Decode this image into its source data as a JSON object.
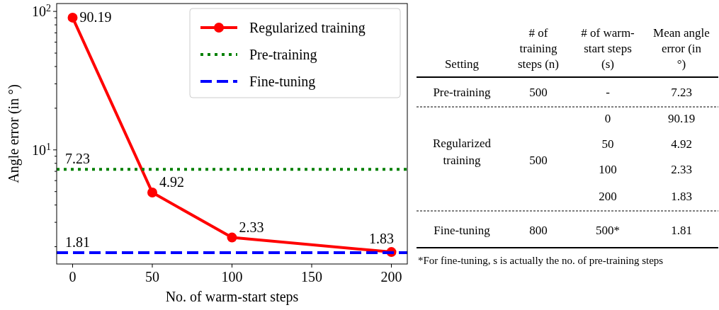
{
  "chart_data": [
    {
      "type": "line",
      "xlabel": "No. of warm-start steps",
      "ylabel": "Angle error (in °)",
      "log": "y",
      "xlim": [
        -10,
        210
      ],
      "ylim": [
        1.5,
        114
      ],
      "xticks": [
        0,
        50,
        100,
        150,
        200
      ],
      "yticks": [
        {
          "value": 2,
          "label": null
        },
        {
          "value": 3,
          "label": null
        },
        {
          "value": 4,
          "label": null
        },
        {
          "value": 5,
          "label": null
        },
        {
          "value": 6,
          "label": null
        },
        {
          "value": 7,
          "label": null
        },
        {
          "value": 8,
          "label": null
        },
        {
          "value": 9,
          "label": null
        },
        {
          "value": 10,
          "label": "10$^{1}$"
        },
        {
          "value": 20,
          "label": null
        },
        {
          "value": 30,
          "label": null
        },
        {
          "value": 40,
          "label": null
        },
        {
          "value": 50,
          "label": null
        },
        {
          "value": 60,
          "label": null
        },
        {
          "value": 70,
          "label": null
        },
        {
          "value": 80,
          "label": null
        },
        {
          "value": 90,
          "label": null
        },
        {
          "value": 100,
          "label": "10$^{2}$"
        }
      ],
      "legend": "top right",
      "grid": false,
      "series": [
        {
          "name": "Regularized training",
          "color": "#ff0000",
          "x": [
            0,
            50,
            100,
            200
          ],
          "values": [
            90.19,
            4.92,
            2.33,
            1.83
          ],
          "marker": "circle",
          "line_style": "solid",
          "value_labels": [
            "90.19",
            "4.92",
            "2.33",
            "1.83"
          ]
        },
        {
          "name": "Pre-training",
          "color": "#008000",
          "x": [
            -10,
            210
          ],
          "values": [
            7.23,
            7.23
          ],
          "marker": "none",
          "line_style": "dotted",
          "value_labels": [
            "7.23",
            null
          ]
        },
        {
          "name": "Fine-tuning",
          "color": "#0000ff",
          "x": [
            -10,
            210
          ],
          "values": [
            1.81,
            1.81
          ],
          "marker": "none",
          "line_style": "dashed",
          "value_labels": [
            "1.81",
            null
          ]
        }
      ]
    },
    {
      "type": "other",
      "annotations": [
        "Setting",
        "# of training steps (n)",
        "# of warm-start steps (s)",
        "Mean angle error (in °)",
        "Pre-training",
        "500",
        "-",
        "7.23",
        "Regularized training",
        "500",
        "0",
        "90.19",
        "50",
        "4.92",
        "100",
        "2.33",
        "200",
        "1.83",
        "Fine-tuning",
        "800",
        "500*",
        "1.81",
        "*For fine-tuning, s is actually the no. of pre-training steps"
      ]
    }
  ]
}
